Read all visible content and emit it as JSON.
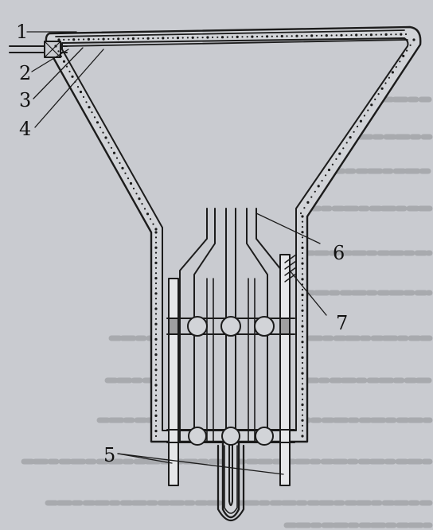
{
  "figure": {
    "callouts": [
      {
        "id": "c1",
        "label": "1"
      },
      {
        "id": "c2",
        "label": "2"
      },
      {
        "id": "c3",
        "label": "3"
      },
      {
        "id": "c4",
        "label": "4"
      },
      {
        "id": "c5",
        "label": "5"
      },
      {
        "id": "c6",
        "label": "6"
      },
      {
        "id": "c7",
        "label": "7"
      }
    ],
    "background_text_lines": 12,
    "colors": {
      "paper": "#c9cbd0",
      "ink": "#1a1a1a",
      "bleed": "#8e9094",
      "fill_pipe": "#e6e7e9"
    }
  }
}
